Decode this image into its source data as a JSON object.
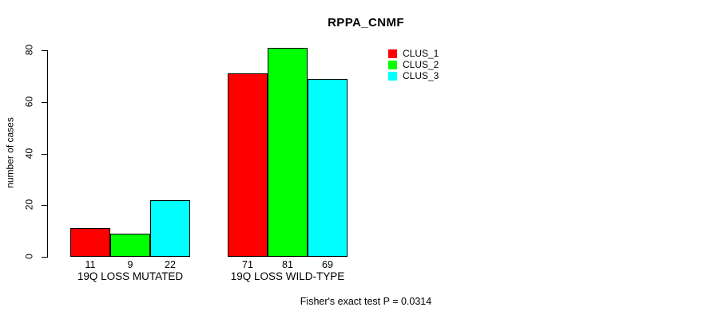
{
  "chart_data": {
    "type": "bar",
    "title": "RPPA_CNMF",
    "ylabel": "number of cases",
    "xlabel": "",
    "categories": [
      "19Q LOSS MUTATED",
      "19Q LOSS WILD-TYPE"
    ],
    "series": [
      {
        "name": "CLUS_1",
        "color": "#ff0000",
        "values": [
          11,
          71
        ]
      },
      {
        "name": "CLUS_2",
        "color": "#00ff00",
        "values": [
          9,
          81
        ]
      },
      {
        "name": "CLUS_3",
        "color": "#00ffff",
        "values": [
          22,
          69
        ]
      }
    ],
    "show_bar_values": true,
    "yticks": [
      0,
      20,
      40,
      60,
      80
    ],
    "ylim": [
      0,
      81
    ],
    "grid": false,
    "legend_position": "top-right",
    "annotation": "Fisher's exact test P = 0.0314"
  }
}
